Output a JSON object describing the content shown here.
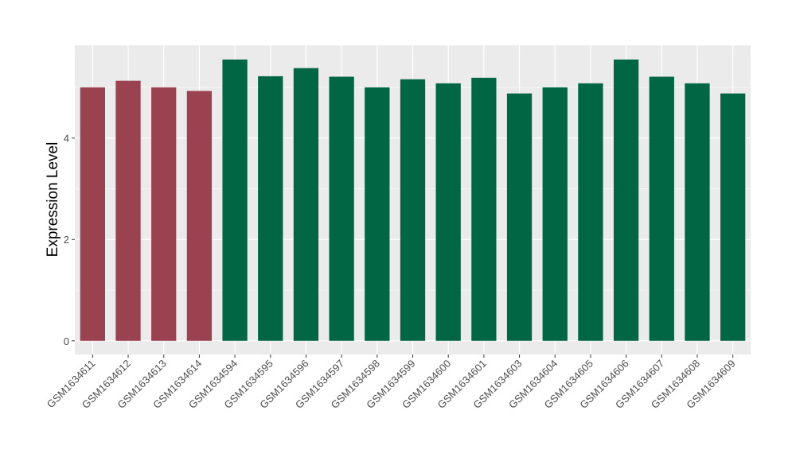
{
  "chart_data": {
    "type": "bar",
    "title": "",
    "xlabel": "",
    "ylabel": "Expression Level",
    "ylim": [
      -0.27,
      5.83
    ],
    "yticks": [
      0,
      2,
      4
    ],
    "grid": true,
    "legend": "none",
    "categories": [
      "GSM1634611",
      "GSM1634612",
      "GSM1634613",
      "GSM1634614",
      "GSM1634594",
      "GSM1634595",
      "GSM1634596",
      "GSM1634597",
      "GSM1634598",
      "GSM1634599",
      "GSM1634600",
      "GSM1634601",
      "GSM1634603",
      "GSM1634604",
      "GSM1634605",
      "GSM1634606",
      "GSM1634607",
      "GSM1634608",
      "GSM1634609"
    ],
    "values": [
      5.0,
      5.13,
      5.0,
      4.93,
      5.55,
      5.22,
      5.38,
      5.21,
      5.0,
      5.16,
      5.08,
      5.19,
      4.88,
      5.0,
      5.08,
      5.55,
      5.21,
      5.08,
      4.88
    ],
    "groups": [
      "a",
      "a",
      "a",
      "a",
      "b",
      "b",
      "b",
      "b",
      "b",
      "b",
      "b",
      "b",
      "b",
      "b",
      "b",
      "b",
      "b",
      "b",
      "b"
    ],
    "colors": {
      "a": "#9b4250",
      "b": "#006644"
    },
    "panel_background": "#ebebeb",
    "gridline_color": "#ffffff"
  }
}
